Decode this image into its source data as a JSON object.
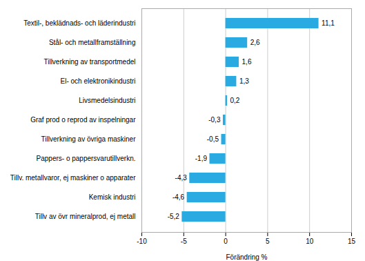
{
  "chart_data": {
    "type": "bar",
    "orientation": "horizontal",
    "categories": [
      "Tillv av övr mineralprod, ej metall",
      "Kemisk industri",
      "Tillv. metallvaror, ej maskiner o apparater",
      "Pappers- o pappersvarutillverkn.",
      "Tillverkning av övriga maskiner",
      "Graf prod o reprod av inspelningar",
      "Livsmedelsindustri",
      "El- och elektronikindustri",
      "Tillverkning av transportmedel",
      "Stål- och metallframställning",
      "Textil-, beklädnads- och läderindustri"
    ],
    "values": [
      -5.2,
      -4.6,
      -4.3,
      -1.9,
      -0.5,
      -0.3,
      0.2,
      1.3,
      1.6,
      2.6,
      11.1
    ],
    "value_labels": [
      "-5,2",
      "-4,6",
      "-4,3",
      "-1,9",
      "-0,5",
      "-0,3",
      "0,2",
      "1,3",
      "1,6",
      "2,6",
      "11,1"
    ],
    "color": "#29abe2",
    "xlabel": "Förändring %",
    "xlim": [
      -10,
      15
    ],
    "xticks": [
      -10,
      -5,
      0,
      5,
      10,
      15
    ],
    "grid": true,
    "data_labels": true
  }
}
